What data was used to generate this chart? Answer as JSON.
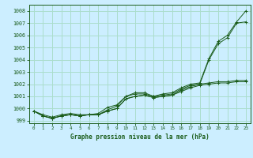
{
  "xlabel": "Graphe pression niveau de la mer (hPa)",
  "ylabel": "",
  "bg_color": "#cceeff",
  "grid_color": "#aaddcc",
  "line_color": "#1a5c1a",
  "ylim": [
    998.8,
    1008.5
  ],
  "xlim": [
    -0.5,
    23.5
  ],
  "yticks": [
    999,
    1000,
    1001,
    1002,
    1003,
    1004,
    1005,
    1006,
    1007,
    1008
  ],
  "xticks": [
    0,
    1,
    2,
    3,
    4,
    5,
    6,
    7,
    8,
    9,
    10,
    11,
    12,
    13,
    14,
    15,
    16,
    17,
    18,
    19,
    20,
    21,
    22,
    23
  ],
  "series": [
    [
      999.8,
      999.5,
      999.3,
      999.5,
      999.6,
      999.5,
      999.5,
      999.6,
      1000.1,
      1000.3,
      1001.0,
      1001.3,
      1001.3,
      1001.0,
      1001.2,
      1001.3,
      1001.7,
      1002.0,
      1002.1,
      1004.1,
      1005.5,
      1006.0,
      1007.1,
      1008.0
    ],
    [
      999.8,
      999.4,
      999.2,
      999.4,
      999.5,
      999.4,
      999.5,
      999.5,
      999.9,
      1000.2,
      1001.0,
      1001.2,
      1001.2,
      1001.0,
      1001.1,
      1001.2,
      1001.6,
      1001.9,
      1002.0,
      1004.0,
      1005.3,
      1005.8,
      1007.0,
      1007.1
    ],
    [
      999.8,
      999.4,
      999.2,
      999.4,
      999.5,
      999.4,
      999.5,
      999.5,
      999.8,
      1000.0,
      1000.8,
      1001.0,
      1001.1,
      1000.9,
      1001.0,
      1001.1,
      1001.5,
      1001.8,
      1002.0,
      1002.1,
      1002.2,
      1002.2,
      1002.3,
      1002.3
    ],
    [
      999.8,
      999.4,
      999.2,
      999.4,
      999.5,
      999.4,
      999.5,
      999.5,
      999.8,
      1000.0,
      1000.8,
      1001.0,
      1001.1,
      1000.9,
      1001.0,
      1001.1,
      1001.4,
      1001.7,
      1001.9,
      1002.0,
      1002.1,
      1002.1,
      1002.2,
      1002.2
    ]
  ]
}
